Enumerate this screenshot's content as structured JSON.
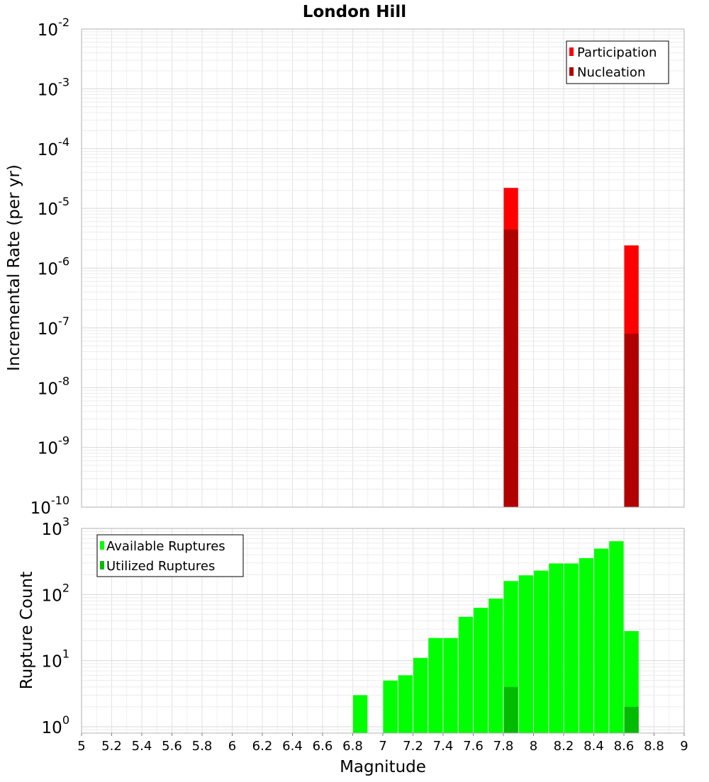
{
  "chart_data": [
    {
      "type": "bar",
      "title": "London Hill",
      "ylabel": "Incremental Rate (per yr)",
      "y_scale": "log",
      "ylim": [
        1e-10,
        0.01
      ],
      "xlim": [
        5,
        9
      ],
      "bar_width": 0.1,
      "grid": true,
      "legend_position": "top-right",
      "series": [
        {
          "name": "Participation",
          "color": "#ff0000",
          "points": [
            {
              "x": 7.85,
              "y": 2.2e-05
            },
            {
              "x": 8.65,
              "y": 2.4e-06
            }
          ]
        },
        {
          "name": "Nucleation",
          "color": "#b00000",
          "points": [
            {
              "x": 7.85,
              "y": 4.4e-06
            },
            {
              "x": 8.65,
              "y": 8e-08
            }
          ]
        }
      ],
      "y_ticks": [
        {
          "base": "10",
          "exp": "-2"
        },
        {
          "base": "10",
          "exp": "-3"
        },
        {
          "base": "10",
          "exp": "-4"
        },
        {
          "base": "10",
          "exp": "-5"
        },
        {
          "base": "10",
          "exp": "-6"
        },
        {
          "base": "10",
          "exp": "-7"
        },
        {
          "base": "10",
          "exp": "-8"
        },
        {
          "base": "10",
          "exp": "-9"
        },
        {
          "base": "10",
          "exp": "-10"
        }
      ]
    },
    {
      "type": "bar",
      "xlabel": "Magnitude",
      "ylabel": "Rupture Count",
      "y_scale": "log",
      "ylim": [
        0.8,
        1000
      ],
      "xlim": [
        5,
        9
      ],
      "bar_width": 0.1,
      "grid": true,
      "legend_position": "top-left",
      "series": [
        {
          "name": "Available Ruptures",
          "color": "#00ff00",
          "points": [
            {
              "x": 6.85,
              "y": 3
            },
            {
              "x": 7.05,
              "y": 5
            },
            {
              "x": 7.15,
              "y": 6
            },
            {
              "x": 7.25,
              "y": 11
            },
            {
              "x": 7.35,
              "y": 22
            },
            {
              "x": 7.45,
              "y": 22
            },
            {
              "x": 7.55,
              "y": 46
            },
            {
              "x": 7.65,
              "y": 63
            },
            {
              "x": 7.75,
              "y": 87
            },
            {
              "x": 7.85,
              "y": 160
            },
            {
              "x": 7.95,
              "y": 195
            },
            {
              "x": 8.05,
              "y": 230
            },
            {
              "x": 8.15,
              "y": 295
            },
            {
              "x": 8.25,
              "y": 295
            },
            {
              "x": 8.35,
              "y": 355
            },
            {
              "x": 8.45,
              "y": 495
            },
            {
              "x": 8.55,
              "y": 640
            },
            {
              "x": 8.65,
              "y": 28
            }
          ]
        },
        {
          "name": "Utilized Ruptures",
          "color": "#00bb00",
          "points": [
            {
              "x": 7.85,
              "y": 4
            },
            {
              "x": 8.65,
              "y": 2
            }
          ]
        }
      ],
      "y_ticks": [
        {
          "base": "10",
          "exp": "3"
        },
        {
          "base": "10",
          "exp": "2"
        },
        {
          "base": "10",
          "exp": "1"
        },
        {
          "base": "10",
          "exp": "0"
        }
      ],
      "x_tick_labels": [
        "5",
        "5.2",
        "5.4",
        "5.6",
        "5.8",
        "6",
        "6.2",
        "6.4",
        "6.6",
        "6.8",
        "7",
        "7.2",
        "7.4",
        "7.6",
        "7.8",
        "8",
        "8.2",
        "8.4",
        "8.6",
        "8.8",
        "9"
      ]
    }
  ]
}
